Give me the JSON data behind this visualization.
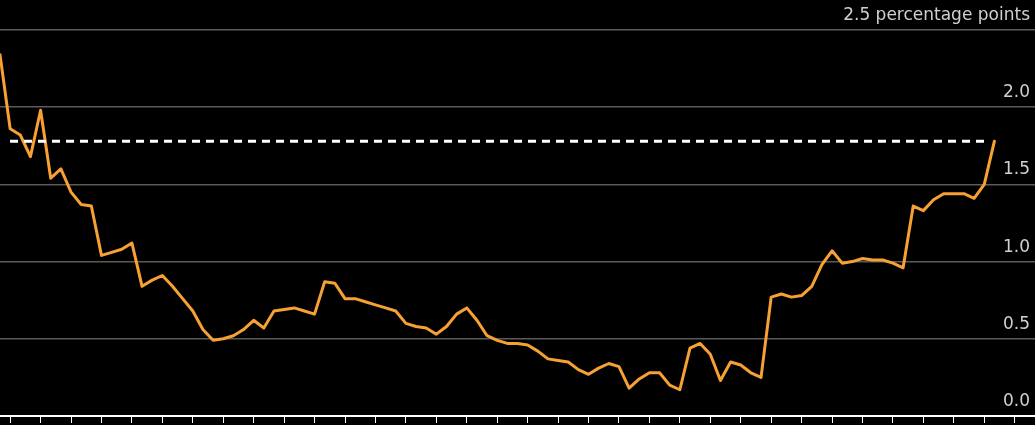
{
  "chart_data": {
    "type": "line",
    "categories": [
      null,
      null,
      null,
      null,
      null,
      null,
      null,
      null,
      null,
      null,
      null,
      null,
      null,
      null,
      null,
      null,
      null,
      null,
      null,
      null,
      null,
      null,
      null,
      null,
      null,
      null,
      null,
      null,
      null,
      null,
      null,
      null,
      null,
      null,
      null,
      null,
      null,
      null,
      null,
      null,
      null,
      null,
      null,
      null,
      null,
      null,
      null,
      null,
      null,
      null,
      null,
      null,
      null,
      null,
      null,
      null,
      null,
      null,
      null,
      null,
      null,
      null,
      null,
      null,
      null,
      null,
      null,
      null,
      null,
      null,
      null,
      null,
      null,
      null,
      null,
      null,
      null,
      null,
      null,
      null,
      null,
      null,
      null,
      null,
      null,
      null,
      null,
      null,
      null,
      null,
      null,
      null,
      null,
      null,
      null,
      null,
      null,
      null,
      null,
      null,
      null,
      null,
      null
    ],
    "series": [
      {
        "color": "#f7a033",
        "values": [
          2.34,
          1.86,
          1.82,
          1.68,
          1.98,
          1.54,
          1.6,
          1.45,
          1.37,
          1.36,
          1.04,
          1.06,
          1.08,
          1.12,
          0.84,
          0.88,
          0.91,
          0.84,
          0.76,
          0.68,
          0.56,
          0.49,
          0.5,
          0.52,
          0.56,
          0.62,
          0.57,
          0.68,
          0.69,
          0.7,
          0.68,
          0.66,
          0.87,
          0.86,
          0.76,
          0.76,
          0.74,
          0.72,
          0.7,
          0.68,
          0.6,
          0.58,
          0.57,
          0.53,
          0.58,
          0.66,
          0.7,
          0.62,
          0.52,
          0.49,
          0.47,
          0.47,
          0.46,
          0.42,
          0.37,
          0.36,
          0.35,
          0.3,
          0.27,
          0.31,
          0.34,
          0.32,
          0.18,
          0.24,
          0.28,
          0.28,
          0.2,
          0.17,
          0.44,
          0.47,
          0.4,
          0.23,
          0.35,
          0.33,
          0.28,
          0.25,
          0.77,
          0.79,
          0.77,
          0.78,
          0.84,
          0.98,
          1.07,
          0.99,
          1,
          1.02,
          1.01,
          1.01,
          0.99,
          0.96,
          1.36,
          1.33,
          1.4,
          1.44,
          1.44,
          1.44,
          1.41,
          1.5,
          1.78,
          null,
          null,
          null,
          null
        ]
      }
    ],
    "ylim": [
      0,
      2.5
    ],
    "yticks": [
      {
        "value": 0,
        "label": "0.0"
      },
      0.5,
      {
        "value": 1,
        "label": "1.0"
      },
      1.5,
      {
        "value": 2,
        "label": "2.0"
      },
      {
        "value": 2.5,
        "label": "2.5 percentage points"
      }
    ],
    "grid": "y",
    "tick_labels": "y",
    "line_style": "solid",
    "marker": "none",
    "ref_lines": [
      {
        "axis": "y",
        "value": 1.78,
        "color": "#ffffff",
        "line_style": "dashed"
      }
    ]
  }
}
